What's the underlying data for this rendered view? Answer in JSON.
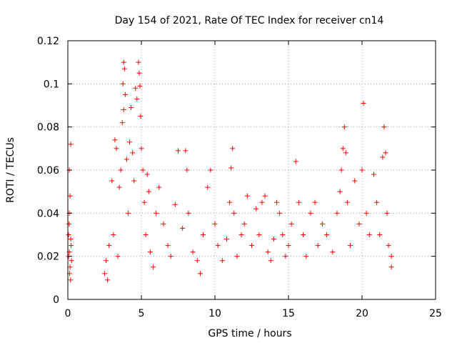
{
  "chart_data": {
    "type": "scatter",
    "title": "Day 154 of 2021, Rate Of TEC Index for receiver cn14",
    "xlabel": "GPS time / hours",
    "ylabel": "ROTI / TECUs",
    "xlim": [
      0,
      25
    ],
    "ylim": [
      0,
      0.12
    ],
    "xticks": [
      0,
      5,
      10,
      15,
      20,
      25
    ],
    "xtick_labels": [
      "0",
      "5",
      "10",
      "15",
      "20",
      "25"
    ],
    "yticks": [
      0,
      0.02,
      0.04,
      0.06,
      0.08,
      0.1,
      0.12
    ],
    "ytick_labels": [
      "0",
      "0.02",
      "0.04",
      "0.06",
      "0.08",
      "0.1",
      "0.12"
    ],
    "grid": true,
    "marker": "+",
    "color": "#ff0000",
    "series": [
      {
        "name": "ROTI",
        "points": [
          [
            0.05,
            0.03
          ],
          [
            0.1,
            0.022
          ],
          [
            0.15,
            0.015
          ],
          [
            0.2,
            0.028
          ],
          [
            0.08,
            0.035
          ],
          [
            0.12,
            0.012
          ],
          [
            0.18,
            0.009
          ],
          [
            0.22,
            0.025
          ],
          [
            0.1,
            0.06
          ],
          [
            0.2,
            0.072
          ],
          [
            0.15,
            0.048
          ],
          [
            0.1,
            0.04
          ],
          [
            0.25,
            0.018
          ],
          [
            0.05,
            0.02
          ],
          [
            2.5,
            0.012
          ],
          [
            2.6,
            0.018
          ],
          [
            2.8,
            0.025
          ],
          [
            2.7,
            0.009
          ],
          [
            3.0,
            0.055
          ],
          [
            3.2,
            0.074
          ],
          [
            3.3,
            0.07
          ],
          [
            3.1,
            0.03
          ],
          [
            3.4,
            0.02
          ],
          [
            3.5,
            0.052
          ],
          [
            3.6,
            0.06
          ],
          [
            3.7,
            0.082
          ],
          [
            3.8,
            0.088
          ],
          [
            3.75,
            0.1
          ],
          [
            3.8,
            0.11
          ],
          [
            3.85,
            0.107
          ],
          [
            3.9,
            0.095
          ],
          [
            4.0,
            0.065
          ],
          [
            4.1,
            0.04
          ],
          [
            4.2,
            0.073
          ],
          [
            4.3,
            0.089
          ],
          [
            4.4,
            0.068
          ],
          [
            4.5,
            0.055
          ],
          [
            4.6,
            0.098
          ],
          [
            4.7,
            0.093
          ],
          [
            4.8,
            0.11
          ],
          [
            4.85,
            0.105
          ],
          [
            4.9,
            0.099
          ],
          [
            4.95,
            0.085
          ],
          [
            5.0,
            0.07
          ],
          [
            5.1,
            0.06
          ],
          [
            5.2,
            0.045
          ],
          [
            5.3,
            0.03
          ],
          [
            5.4,
            0.058
          ],
          [
            5.5,
            0.05
          ],
          [
            5.6,
            0.022
          ],
          [
            5.8,
            0.015
          ],
          [
            6.0,
            0.04
          ],
          [
            6.2,
            0.052
          ],
          [
            6.5,
            0.035
          ],
          [
            6.8,
            0.025
          ],
          [
            7.0,
            0.02
          ],
          [
            7.3,
            0.044
          ],
          [
            7.5,
            0.069
          ],
          [
            7.8,
            0.033
          ],
          [
            8.0,
            0.069
          ],
          [
            8.1,
            0.06
          ],
          [
            8.2,
            0.04
          ],
          [
            8.5,
            0.022
          ],
          [
            8.8,
            0.018
          ],
          [
            9.0,
            0.012
          ],
          [
            9.2,
            0.03
          ],
          [
            9.5,
            0.052
          ],
          [
            9.7,
            0.06
          ],
          [
            10.0,
            0.035
          ],
          [
            10.2,
            0.025
          ],
          [
            10.5,
            0.018
          ],
          [
            10.8,
            0.028
          ],
          [
            11.0,
            0.045
          ],
          [
            11.1,
            0.061
          ],
          [
            11.2,
            0.07
          ],
          [
            11.3,
            0.04
          ],
          [
            11.5,
            0.02
          ],
          [
            11.8,
            0.03
          ],
          [
            12.0,
            0.035
          ],
          [
            12.2,
            0.048
          ],
          [
            12.5,
            0.025
          ],
          [
            12.8,
            0.042
          ],
          [
            13.0,
            0.03
          ],
          [
            13.2,
            0.045
          ],
          [
            13.4,
            0.048
          ],
          [
            13.6,
            0.022
          ],
          [
            13.8,
            0.018
          ],
          [
            14.0,
            0.028
          ],
          [
            14.2,
            0.045
          ],
          [
            14.4,
            0.04
          ],
          [
            14.6,
            0.03
          ],
          [
            14.8,
            0.02
          ],
          [
            15.0,
            0.025
          ],
          [
            15.2,
            0.035
          ],
          [
            15.5,
            0.064
          ],
          [
            15.7,
            0.045
          ],
          [
            16.0,
            0.03
          ],
          [
            16.2,
            0.02
          ],
          [
            16.5,
            0.04
          ],
          [
            16.8,
            0.045
          ],
          [
            17.0,
            0.025
          ],
          [
            17.3,
            0.035
          ],
          [
            17.6,
            0.03
          ],
          [
            18.0,
            0.022
          ],
          [
            18.3,
            0.04
          ],
          [
            18.5,
            0.05
          ],
          [
            18.6,
            0.06
          ],
          [
            18.7,
            0.07
          ],
          [
            18.8,
            0.08
          ],
          [
            18.9,
            0.068
          ],
          [
            19.0,
            0.045
          ],
          [
            19.2,
            0.025
          ],
          [
            19.5,
            0.055
          ],
          [
            19.8,
            0.035
          ],
          [
            20.0,
            0.06
          ],
          [
            20.1,
            0.091
          ],
          [
            20.3,
            0.04
          ],
          [
            20.5,
            0.03
          ],
          [
            20.8,
            0.058
          ],
          [
            21.0,
            0.045
          ],
          [
            21.2,
            0.03
          ],
          [
            21.4,
            0.066
          ],
          [
            21.5,
            0.08
          ],
          [
            21.6,
            0.068
          ],
          [
            21.7,
            0.04
          ],
          [
            21.8,
            0.025
          ],
          [
            22.0,
            0.015
          ],
          [
            22.0,
            0.02
          ]
        ]
      }
    ]
  }
}
